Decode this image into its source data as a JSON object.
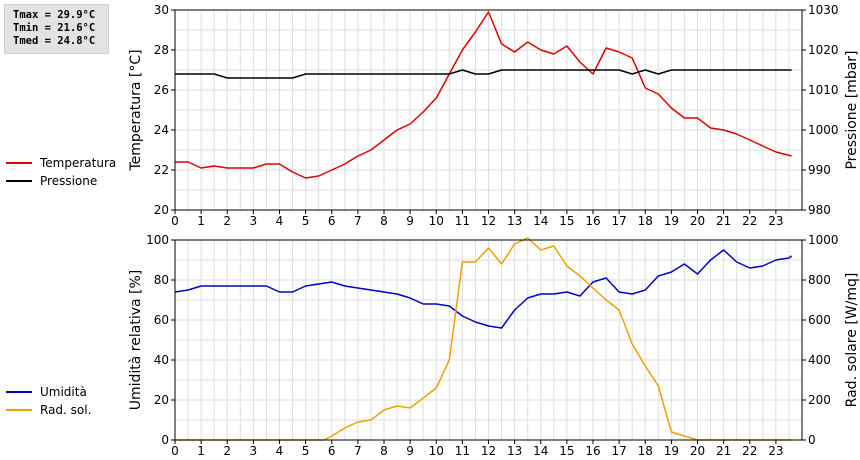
{
  "stats": {
    "tmax": "Tmax = 29.9°C",
    "tmin": "Tmin = 21.6°C",
    "tmed": "Tmed = 24.8°C"
  },
  "chart_data": [
    {
      "type": "line",
      "ylabel": "Temperatura [°C]",
      "y2label": "Pressione [mbar]",
      "xlim": [
        0,
        24
      ],
      "ylim": [
        20,
        30
      ],
      "y2lim": [
        980,
        1030
      ],
      "xticks": [
        0,
        1,
        2,
        3,
        4,
        5,
        6,
        7,
        8,
        9,
        10,
        11,
        12,
        13,
        14,
        15,
        16,
        17,
        18,
        19,
        20,
        21,
        22,
        23
      ],
      "yticks": [
        20,
        22,
        24,
        26,
        28,
        30
      ],
      "y2ticks": [
        980,
        990,
        1000,
        1010,
        1020,
        1030
      ],
      "grid": true,
      "legend_position": "left",
      "series": [
        {
          "name": "Temperatura",
          "color": "#dd0000",
          "axis": "left",
          "points": [
            [
              0,
              22.4
            ],
            [
              0.5,
              22.4
            ],
            [
              1,
              22.1
            ],
            [
              1.5,
              22.2
            ],
            [
              2,
              22.1
            ],
            [
              2.5,
              22.1
            ],
            [
              3,
              22.1
            ],
            [
              3.5,
              22.3
            ],
            [
              4,
              22.3
            ],
            [
              4.5,
              21.9
            ],
            [
              5,
              21.6
            ],
            [
              5.5,
              21.7
            ],
            [
              6,
              22
            ],
            [
              6.5,
              22.3
            ],
            [
              7,
              22.7
            ],
            [
              7.5,
              23
            ],
            [
              8,
              23.5
            ],
            [
              8.5,
              24
            ],
            [
              9,
              24.3
            ],
            [
              9.5,
              24.9
            ],
            [
              10,
              25.6
            ],
            [
              10.5,
              26.8
            ],
            [
              11,
              28
            ],
            [
              11.5,
              28.9
            ],
            [
              12,
              29.9
            ],
            [
              12.5,
              28.3
            ],
            [
              13,
              27.9
            ],
            [
              13.5,
              28.4
            ],
            [
              14,
              28
            ],
            [
              14.5,
              27.8
            ],
            [
              15,
              28.2
            ],
            [
              15.5,
              27.4
            ],
            [
              16,
              26.8
            ],
            [
              16.5,
              28.1
            ],
            [
              17,
              27.9
            ],
            [
              17.5,
              27.6
            ],
            [
              18,
              26.1
            ],
            [
              18.5,
              25.8
            ],
            [
              19,
              25.1
            ],
            [
              19.5,
              24.6
            ],
            [
              20,
              24.6
            ],
            [
              20.5,
              24.1
            ],
            [
              21,
              24
            ],
            [
              21.5,
              23.8
            ],
            [
              22,
              23.5
            ],
            [
              22.5,
              23.2
            ],
            [
              23,
              22.9
            ],
            [
              23.6,
              22.7
            ]
          ]
        },
        {
          "name": "Pressione",
          "color": "#000000",
          "axis": "right",
          "points": [
            [
              0,
              1014
            ],
            [
              1.5,
              1014
            ],
            [
              2,
              1013
            ],
            [
              3,
              1013
            ],
            [
              4.5,
              1013
            ],
            [
              5,
              1014
            ],
            [
              6,
              1014
            ],
            [
              7,
              1014
            ],
            [
              8,
              1014
            ],
            [
              9,
              1014
            ],
            [
              10,
              1014
            ],
            [
              10.5,
              1014
            ],
            [
              11,
              1015
            ],
            [
              11.5,
              1014
            ],
            [
              12,
              1014
            ],
            [
              12.5,
              1015
            ],
            [
              13,
              1015
            ],
            [
              14,
              1015
            ],
            [
              15,
              1015
            ],
            [
              16,
              1015
            ],
            [
              17,
              1015
            ],
            [
              17.5,
              1014
            ],
            [
              18,
              1015
            ],
            [
              18.5,
              1014
            ],
            [
              19,
              1015
            ],
            [
              20,
              1015
            ],
            [
              21,
              1015
            ],
            [
              22,
              1015
            ],
            [
              23,
              1015
            ],
            [
              23.6,
              1015
            ]
          ]
        }
      ]
    },
    {
      "type": "line",
      "ylabel": "Umidità relativa [%]",
      "y2label": "Rad. solare [W/mq]",
      "xlim": [
        0,
        24
      ],
      "ylim": [
        0,
        100
      ],
      "y2lim": [
        0,
        1000
      ],
      "xticks": [
        0,
        1,
        2,
        3,
        4,
        5,
        6,
        7,
        8,
        9,
        10,
        11,
        12,
        13,
        14,
        15,
        16,
        17,
        18,
        19,
        20,
        21,
        22,
        23
      ],
      "yticks": [
        0,
        20,
        40,
        60,
        80,
        100
      ],
      "y2ticks": [
        0,
        200,
        400,
        600,
        800,
        1000
      ],
      "grid": true,
      "legend_position": "left",
      "series": [
        {
          "name": "Umidità",
          "color": "#0000cc",
          "axis": "left",
          "points": [
            [
              0,
              74
            ],
            [
              0.5,
              75
            ],
            [
              1,
              77
            ],
            [
              1.5,
              77
            ],
            [
              2,
              77
            ],
            [
              2.5,
              77
            ],
            [
              3,
              77
            ],
            [
              3.5,
              77
            ],
            [
              4,
              74
            ],
            [
              4.5,
              74
            ],
            [
              5,
              77
            ],
            [
              5.5,
              78
            ],
            [
              6,
              79
            ],
            [
              6.5,
              77
            ],
            [
              7,
              76
            ],
            [
              7.5,
              75
            ],
            [
              8,
              74
            ],
            [
              8.5,
              73
            ],
            [
              9,
              71
            ],
            [
              9.5,
              68
            ],
            [
              10,
              68
            ],
            [
              10.5,
              67
            ],
            [
              11,
              62
            ],
            [
              11.5,
              59
            ],
            [
              12,
              57
            ],
            [
              12.5,
              56
            ],
            [
              13,
              65
            ],
            [
              13.5,
              71
            ],
            [
              14,
              73
            ],
            [
              14.5,
              73
            ],
            [
              15,
              74
            ],
            [
              15.5,
              72
            ],
            [
              16,
              79
            ],
            [
              16.5,
              81
            ],
            [
              17,
              74
            ],
            [
              17.5,
              73
            ],
            [
              18,
              75
            ],
            [
              18.5,
              82
            ],
            [
              19,
              84
            ],
            [
              19.5,
              88
            ],
            [
              20,
              83
            ],
            [
              20.5,
              90
            ],
            [
              21,
              95
            ],
            [
              21.5,
              89
            ],
            [
              22,
              86
            ],
            [
              22.5,
              87
            ],
            [
              23,
              90
            ],
            [
              23.5,
              91
            ],
            [
              23.6,
              92
            ]
          ]
        },
        {
          "name": "Rad. sol.",
          "color": "#f0a000",
          "axis": "right",
          "points": [
            [
              0,
              0
            ],
            [
              1,
              0
            ],
            [
              2,
              0
            ],
            [
              3,
              0
            ],
            [
              4,
              0
            ],
            [
              5,
              0
            ],
            [
              5.7,
              0
            ],
            [
              6,
              20
            ],
            [
              6.5,
              60
            ],
            [
              7,
              90
            ],
            [
              7.5,
              100
            ],
            [
              8,
              150
            ],
            [
              8.5,
              170
            ],
            [
              9,
              160
            ],
            [
              9.5,
              210
            ],
            [
              10,
              260
            ],
            [
              10.5,
              400
            ],
            [
              11,
              890
            ],
            [
              11.5,
              890
            ],
            [
              12,
              960
            ],
            [
              12.5,
              880
            ],
            [
              13,
              980
            ],
            [
              13.5,
              1010
            ],
            [
              14,
              950
            ],
            [
              14.5,
              970
            ],
            [
              15,
              870
            ],
            [
              15.5,
              820
            ],
            [
              16,
              760
            ],
            [
              16.5,
              700
            ],
            [
              17,
              650
            ],
            [
              17.5,
              480
            ],
            [
              18,
              370
            ],
            [
              18.5,
              270
            ],
            [
              19,
              40
            ],
            [
              19.5,
              20
            ],
            [
              20,
              0
            ],
            [
              21,
              0
            ],
            [
              22,
              0
            ],
            [
              23,
              0
            ],
            [
              23.6,
              0
            ]
          ]
        }
      ]
    }
  ]
}
